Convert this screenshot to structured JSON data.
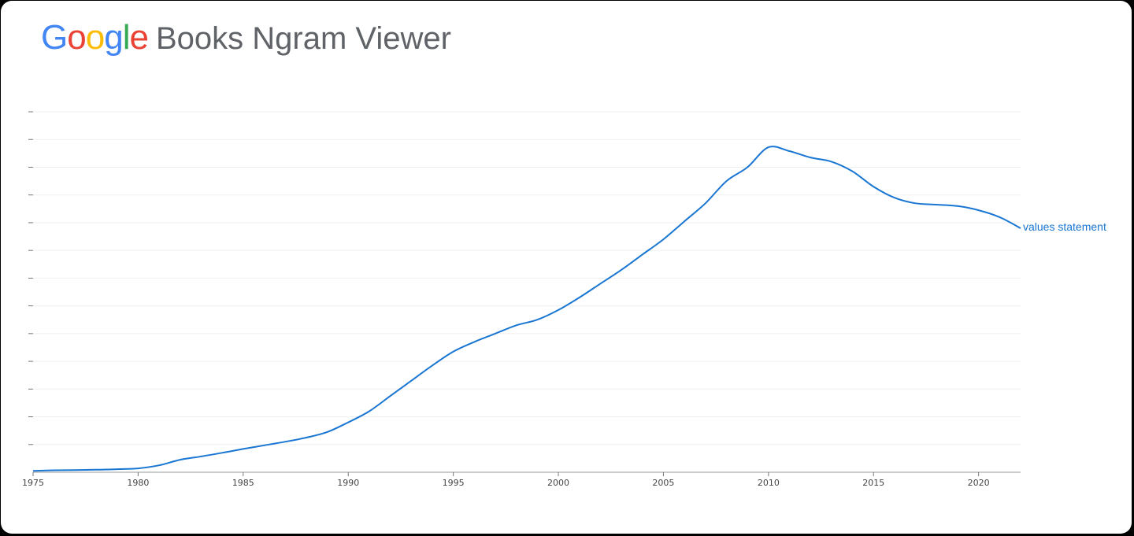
{
  "header": {
    "brand_letters": [
      {
        "char": "G",
        "color": "#4285F4"
      },
      {
        "char": "o",
        "color": "#EA4335"
      },
      {
        "char": "o",
        "color": "#FBBC05"
      },
      {
        "char": "g",
        "color": "#4285F4"
      },
      {
        "char": "l",
        "color": "#34A853"
      },
      {
        "char": "e",
        "color": "#EA4335"
      }
    ],
    "title": "Books Ngram Viewer"
  },
  "chart_data": {
    "type": "line",
    "xlim": [
      1975,
      2022
    ],
    "ylim": [
      0,
      13
    ],
    "y_tick_count": 13,
    "x_ticks": [
      "1975",
      "1980",
      "1985",
      "1990",
      "1995",
      "2000",
      "2005",
      "2010",
      "2015",
      "2020"
    ],
    "grid": true,
    "series": [
      {
        "name": "values statement",
        "color": "#1976D2",
        "x": [
          1975,
          1976,
          1977,
          1978,
          1979,
          1980,
          1981,
          1982,
          1983,
          1984,
          1985,
          1986,
          1987,
          1988,
          1989,
          1990,
          1991,
          1992,
          1993,
          1994,
          1995,
          1996,
          1997,
          1998,
          1999,
          2000,
          2001,
          2002,
          2003,
          2004,
          2005,
          2006,
          2007,
          2008,
          2009,
          2010,
          2011,
          2012,
          2013,
          2014,
          2015,
          2016,
          2017,
          2018,
          2019,
          2020,
          2021,
          2022
        ],
        "y": [
          0.05,
          0.07,
          0.08,
          0.09,
          0.11,
          0.14,
          0.25,
          0.45,
          0.57,
          0.7,
          0.84,
          0.97,
          1.1,
          1.25,
          1.45,
          1.8,
          2.2,
          2.75,
          3.3,
          3.85,
          4.35,
          4.7,
          5.0,
          5.3,
          5.5,
          5.85,
          6.3,
          6.8,
          7.3,
          7.85,
          8.4,
          9.05,
          9.7,
          10.5,
          11.0,
          11.72,
          11.58,
          11.35,
          11.2,
          10.85,
          10.3,
          9.9,
          9.7,
          9.65,
          9.6,
          9.45,
          9.2,
          8.8
        ]
      }
    ]
  }
}
